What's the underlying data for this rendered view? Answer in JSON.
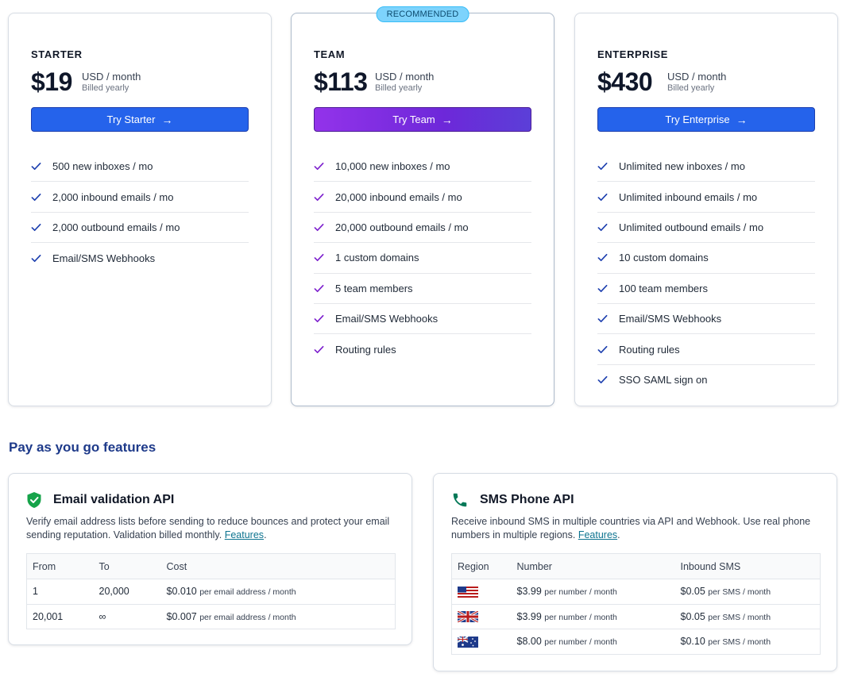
{
  "plans": [
    {
      "name": "STARTER",
      "price": "$19",
      "unit": "USD / month",
      "billed": "Billed yearly",
      "button": "Try Starter",
      "features": [
        "500 new inboxes / mo",
        "2,000 inbound emails / mo",
        "2,000 outbound emails / mo",
        "Email/SMS Webhooks"
      ]
    },
    {
      "badge": "RECOMMENDED",
      "name": "TEAM",
      "price": "$113",
      "unit": "USD / month",
      "billed": "Billed yearly",
      "button": "Try Team",
      "features": [
        "10,000 new inboxes / mo",
        "20,000 inbound emails / mo",
        "20,000 outbound emails / mo",
        "1 custom domains",
        "5 team members",
        "Email/SMS Webhooks",
        "Routing rules"
      ]
    },
    {
      "name": "ENTERPRISE",
      "price": "$430",
      "unit": "USD / month",
      "billed": "Billed yearly",
      "button": "Try Enterprise",
      "features": [
        "Unlimited new inboxes / mo",
        "Unlimited inbound emails / mo",
        "Unlimited outbound emails / mo",
        "10 custom domains",
        "100 team members",
        "Email/SMS Webhooks",
        "Routing rules",
        "SSO SAML sign on"
      ]
    }
  ],
  "colors": {
    "blue_button": "#2563eb",
    "purple_button": "#9333ea",
    "check_blue": "#1e40af",
    "check_purple": "#7e22ce",
    "section_title": "#1e3a8a"
  },
  "payg": {
    "title": "Pay as you go features",
    "email": {
      "icon": "shield-check-icon",
      "title": "Email validation API",
      "desc": "Verify email address lists before sending to reduce bounces and protect your email sending reputation. Validation billed monthly.",
      "link": "Features",
      "columns": [
        "From",
        "To",
        "Cost"
      ],
      "rows": [
        {
          "from": "1",
          "to": "20,000",
          "cost": "$0.010",
          "per": "per email address / month"
        },
        {
          "from": "20,001",
          "to": "∞",
          "cost": "$0.007",
          "per": "per email address / month"
        }
      ]
    },
    "sms": {
      "icon": "phone-icon",
      "title": "SMS Phone API",
      "desc": "Receive inbound SMS in multiple countries via API and Webhook. Use real phone numbers in multiple regions.",
      "link": "Features",
      "columns": [
        "Region",
        "Number",
        "Inbound SMS"
      ],
      "rows": [
        {
          "flag": "us-flag-icon",
          "number": "$3.99",
          "number_per": "per number / month",
          "sms": "$0.05",
          "sms_per": "per SMS / month"
        },
        {
          "flag": "uk-flag-icon",
          "number": "$3.99",
          "number_per": "per number / month",
          "sms": "$0.05",
          "sms_per": "per SMS / month"
        },
        {
          "flag": "au-flag-icon",
          "number": "$8.00",
          "number_per": "per number / month",
          "sms": "$0.10",
          "sms_per": "per SMS / month"
        }
      ]
    }
  }
}
